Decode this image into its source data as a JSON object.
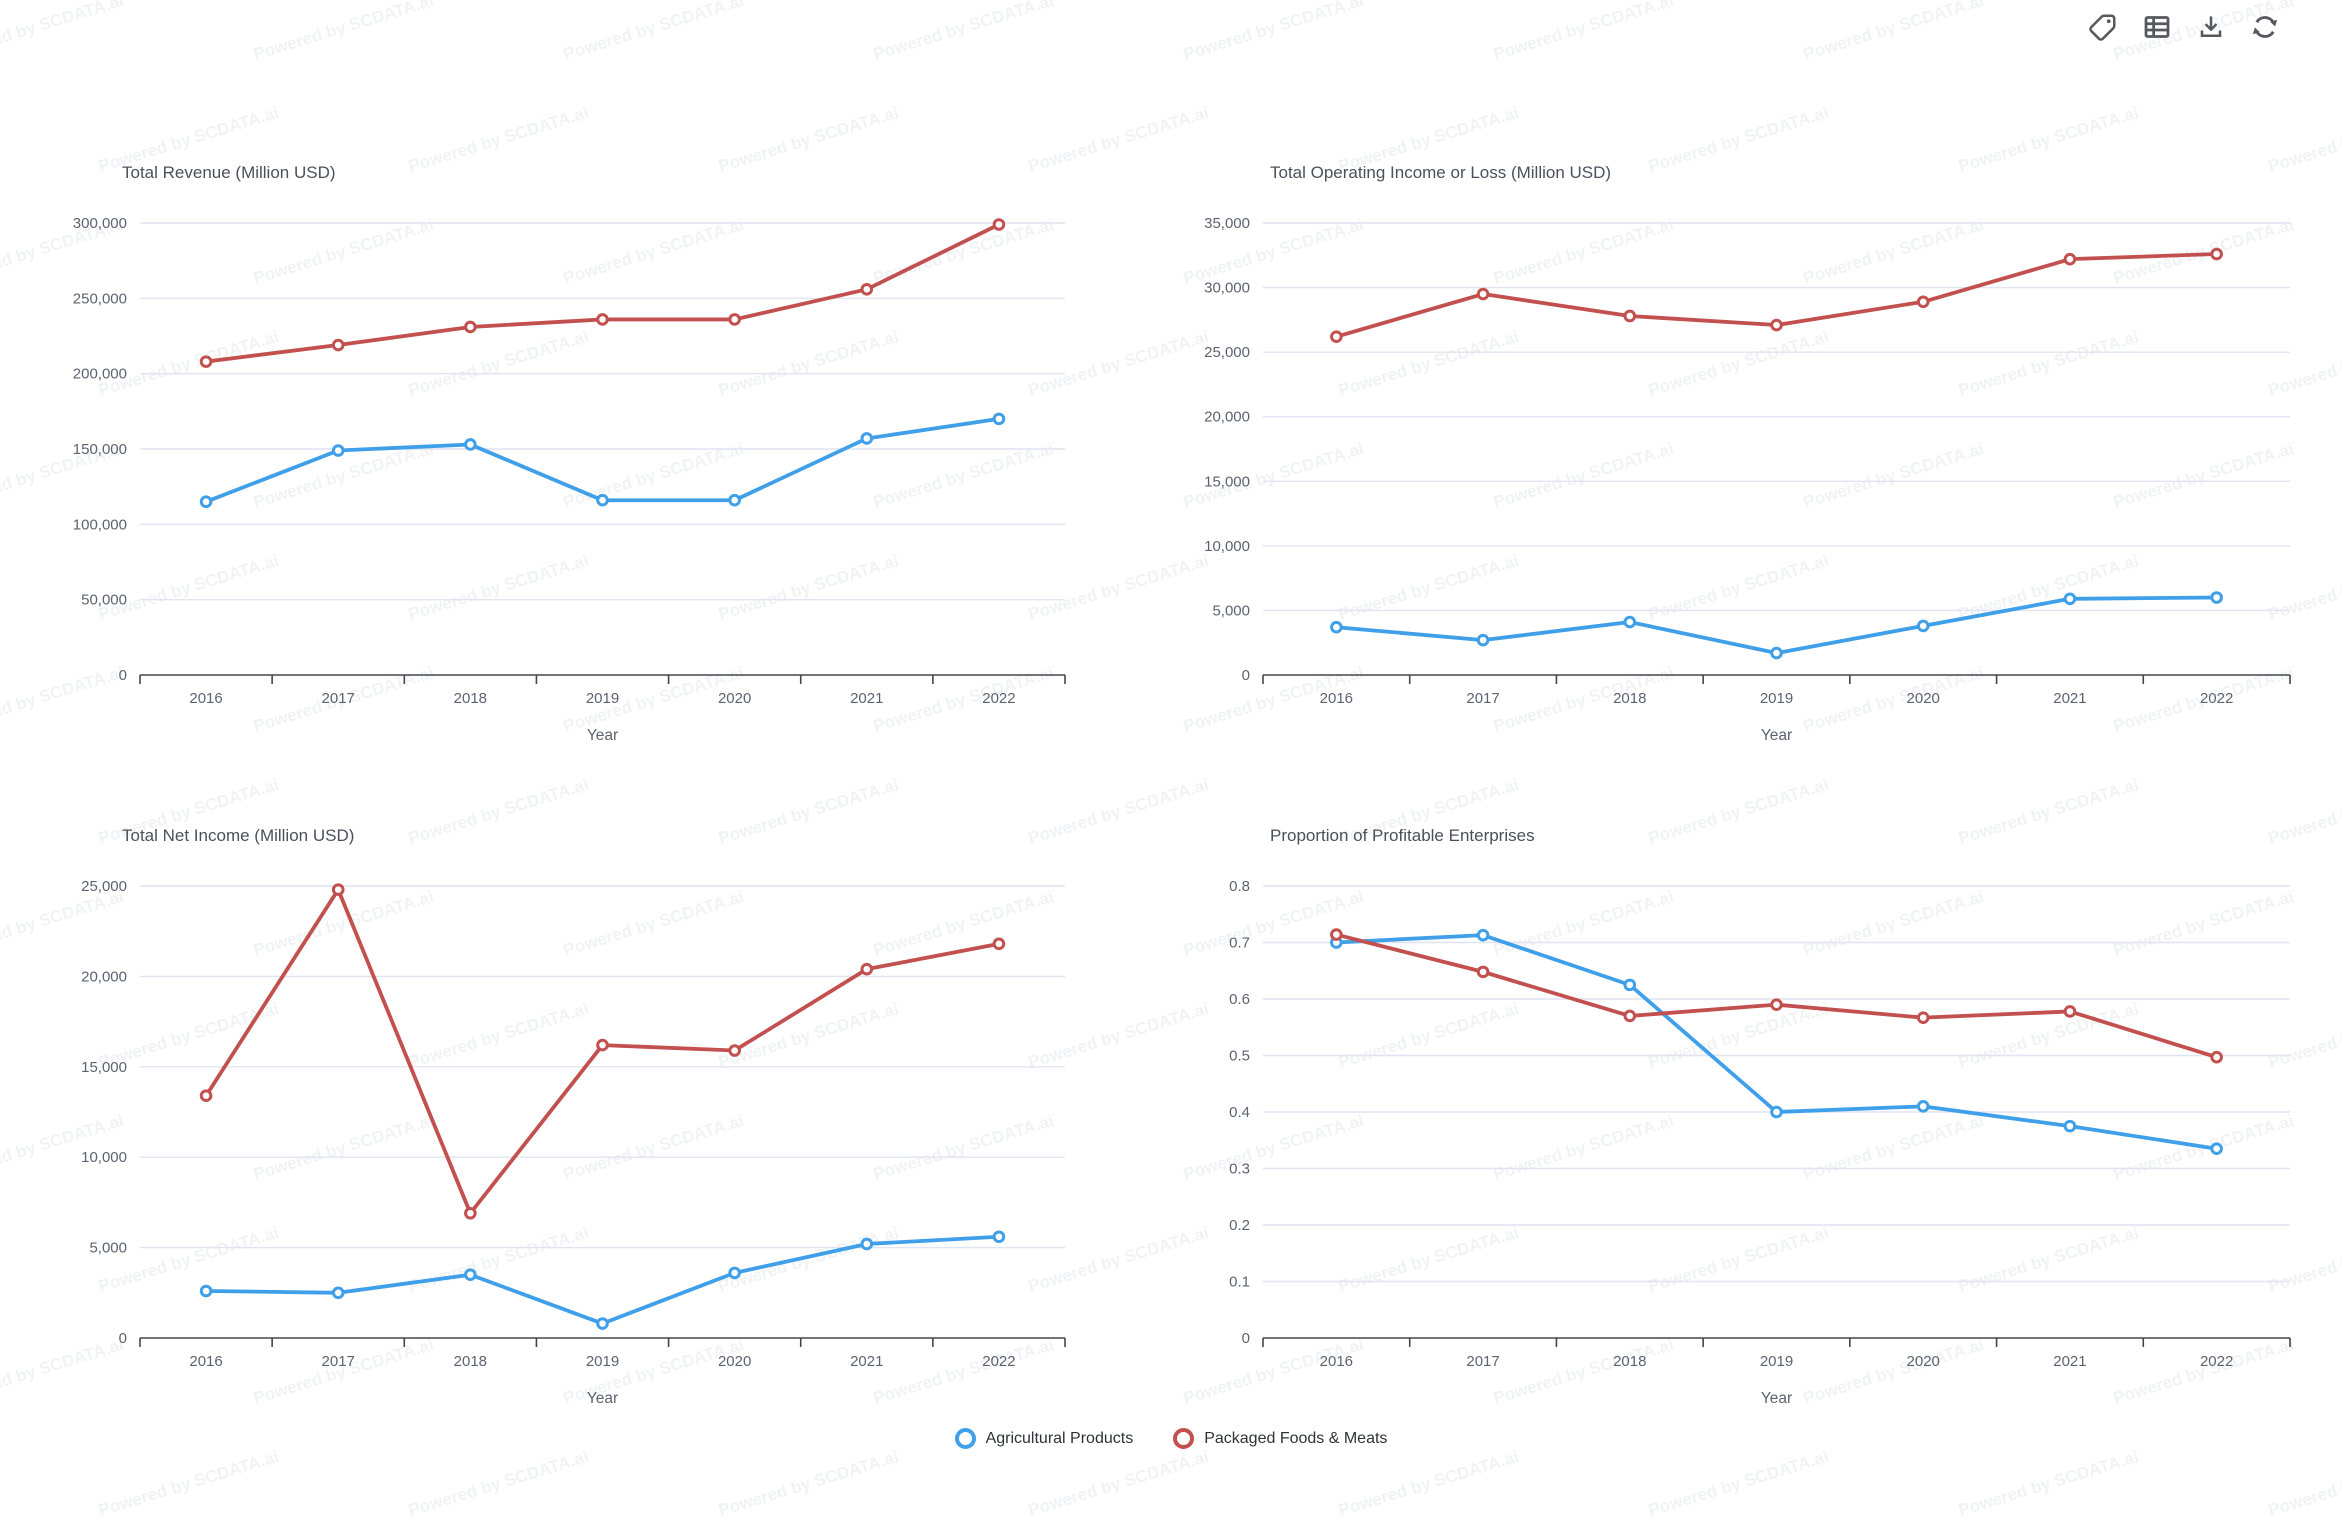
{
  "watermark": {
    "text": "Powered by SCDATA.ai"
  },
  "toolbar": {
    "icons": [
      {
        "name": "tag-icon"
      },
      {
        "name": "table-icon"
      },
      {
        "name": "download-icon"
      },
      {
        "name": "refresh-icon"
      }
    ]
  },
  "legend": {
    "items": [
      {
        "label": "Agricultural Products",
        "color": "#3f9fe8"
      },
      {
        "label": "Packaged Foods & Meats",
        "color": "#c1504e"
      }
    ]
  },
  "chart_data": [
    {
      "type": "line",
      "title": "Total Revenue (Million USD)",
      "xlabel": "Year",
      "x": [
        2016,
        2017,
        2018,
        2019,
        2020,
        2021,
        2022
      ],
      "ylim": [
        0,
        300000
      ],
      "ytick_step": 50000,
      "grid": true,
      "series": [
        {
          "name": "Agricultural Products",
          "color": "#3f9fe8",
          "values": [
            115000,
            149000,
            153000,
            116000,
            116000,
            157000,
            170000
          ]
        },
        {
          "name": "Packaged Foods & Meats",
          "color": "#c1504e",
          "values": [
            208000,
            219000,
            231000,
            236000,
            236000,
            256000,
            299000
          ]
        }
      ]
    },
    {
      "type": "line",
      "title": "Total Operating Income or Loss (Million USD)",
      "xlabel": "Year",
      "x": [
        2016,
        2017,
        2018,
        2019,
        2020,
        2021,
        2022
      ],
      "ylim": [
        0,
        35000
      ],
      "ytick_step": 5000,
      "grid": true,
      "series": [
        {
          "name": "Agricultural Products",
          "color": "#3f9fe8",
          "values": [
            3700,
            2700,
            4100,
            1700,
            3800,
            5900,
            6000
          ]
        },
        {
          "name": "Packaged Foods & Meats",
          "color": "#c1504e",
          "values": [
            26200,
            29500,
            27800,
            27100,
            28900,
            32200,
            32600
          ]
        }
      ]
    },
    {
      "type": "line",
      "title": "Total Net Income (Million USD)",
      "xlabel": "Year",
      "x": [
        2016,
        2017,
        2018,
        2019,
        2020,
        2021,
        2022
      ],
      "ylim": [
        0,
        25000
      ],
      "ytick_step": 5000,
      "grid": true,
      "series": [
        {
          "name": "Agricultural Products",
          "color": "#3f9fe8",
          "values": [
            2600,
            2500,
            3500,
            800,
            3600,
            5200,
            5600
          ]
        },
        {
          "name": "Packaged Foods & Meats",
          "color": "#c1504e",
          "values": [
            13400,
            24800,
            6900,
            16200,
            15900,
            20400,
            21800
          ]
        }
      ]
    },
    {
      "type": "line",
      "title": "Proportion of Profitable Enterprises",
      "xlabel": "Year",
      "x": [
        2016,
        2017,
        2018,
        2019,
        2020,
        2021,
        2022
      ],
      "ylim": [
        0,
        0.8
      ],
      "ytick_step": 0.1,
      "grid": true,
      "series": [
        {
          "name": "Agricultural Products",
          "color": "#3f9fe8",
          "values": [
            0.7,
            0.713,
            0.625,
            0.4,
            0.41,
            0.375,
            0.335
          ]
        },
        {
          "name": "Packaged Foods & Meats",
          "color": "#c1504e",
          "values": [
            0.714,
            0.648,
            0.57,
            0.59,
            0.567,
            0.578,
            0.497
          ]
        }
      ]
    }
  ]
}
